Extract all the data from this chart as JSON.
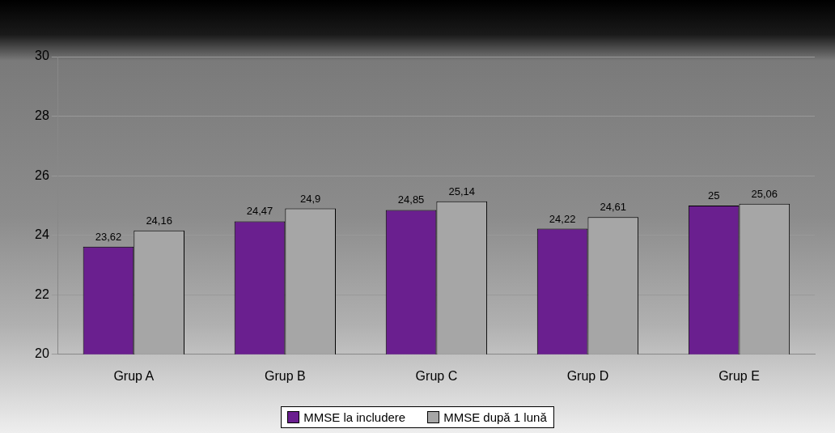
{
  "chart_data": {
    "type": "bar",
    "categories": [
      "Grup A",
      "Grup B",
      "Grup C",
      "Grup D",
      "Grup E"
    ],
    "series": [
      {
        "name": "MMSE la includere",
        "color": "#6a1f8f",
        "values": [
          23.62,
          24.47,
          24.85,
          24.22,
          25
        ],
        "value_labels": [
          "23,62",
          "24,47",
          "24,85",
          "24,22",
          "25"
        ]
      },
      {
        "name": "MMSE după 1 lună",
        "color": "#a6a6a6",
        "values": [
          24.16,
          24.9,
          25.14,
          24.61,
          25.06
        ],
        "value_labels": [
          "24,16",
          "24,9",
          "25,14",
          "24,61",
          "25,06"
        ]
      }
    ],
    "ylim": [
      20,
      30
    ],
    "yticks": [
      20,
      22,
      24,
      26,
      28,
      30
    ],
    "grid": "y",
    "legend": "bottom"
  }
}
